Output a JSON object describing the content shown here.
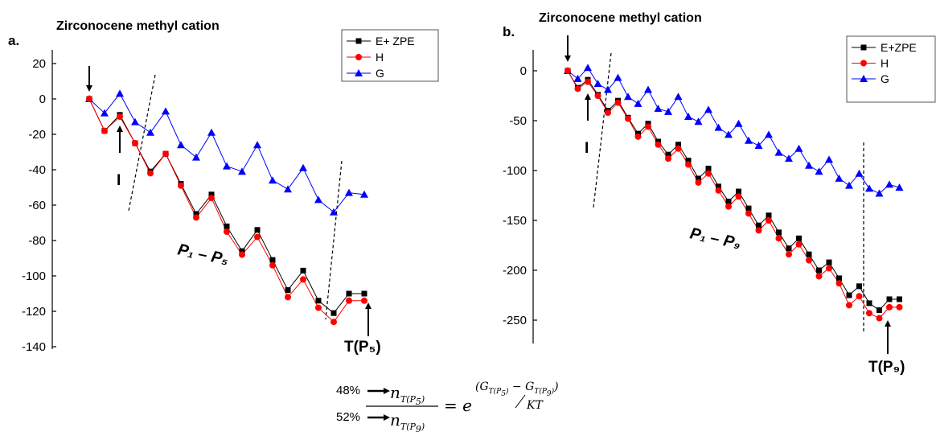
{
  "chart_data": [
    {
      "panel_label": "a.",
      "type": "line",
      "start_label": "Zirconocene methyl cation",
      "region_label": "P₁ – P₅",
      "end_label": "T(P₅)",
      "intermediate_label": "I",
      "ylim": [
        -140,
        20
      ],
      "y_ticks": [
        "20",
        "0",
        "-20",
        "-40",
        "-60",
        "-80",
        "-100",
        "-120",
        "-140"
      ],
      "series": [
        {
          "name": "E+ ZPE",
          "color": "#000000",
          "marker": "square",
          "values": [
            0,
            -18,
            -9,
            -25,
            -41,
            -31,
            -48,
            -65,
            -54,
            -72,
            -86,
            -74,
            -91,
            -108,
            -97,
            -114,
            -121,
            -110,
            -110
          ]
        },
        {
          "name": "H",
          "color": "#ff0000",
          "marker": "circle",
          "values": [
            0,
            -18,
            -10,
            -25,
            -42,
            -31,
            -49,
            -67,
            -56,
            -75,
            -88,
            -78,
            -94,
            -112,
            -102,
            -118,
            -126,
            -114,
            -114
          ]
        },
        {
          "name": "G",
          "color": "#0000ff",
          "marker": "triangle",
          "values": [
            0,
            -8,
            3,
            -13,
            -19,
            -7,
            -26,
            -33,
            -19,
            -38,
            -41,
            -26,
            -46,
            -51,
            -39,
            -57,
            -64,
            -53,
            -54
          ]
        }
      ]
    },
    {
      "panel_label": "b.",
      "type": "line",
      "start_label": "Zirconocene methyl cation",
      "region_label": "P₁ – P₉",
      "end_label": "T(P₉)",
      "intermediate_label": "I",
      "ylim": [
        -250,
        0
      ],
      "y_ticks": [
        "0",
        "-50",
        "-100",
        "-150",
        "-200",
        "-250"
      ],
      "series": [
        {
          "name": "E+ZPE",
          "color": "#000000",
          "marker": "square",
          "values": [
            0,
            -17,
            -9,
            -24,
            -40,
            -30,
            -47,
            -63,
            -53,
            -71,
            -84,
            -74,
            -90,
            -108,
            -98,
            -116,
            -131,
            -121,
            -138,
            -155,
            -145,
            -162,
            -178,
            -168,
            -184,
            -200,
            -192,
            -208,
            -225,
            -216,
            -233,
            -240,
            -229,
            -229
          ]
        },
        {
          "name": "H",
          "color": "#ff0000",
          "marker": "circle",
          "values": [
            0,
            -18,
            -11,
            -25,
            -42,
            -32,
            -48,
            -66,
            -56,
            -74,
            -88,
            -78,
            -94,
            -112,
            -103,
            -120,
            -136,
            -126,
            -143,
            -160,
            -150,
            -168,
            -184,
            -174,
            -190,
            -206,
            -198,
            -213,
            -235,
            -226,
            -243,
            -248,
            -237,
            -237
          ]
        },
        {
          "name": "G",
          "color": "#0000ff",
          "marker": "triangle",
          "values": [
            0,
            -8,
            3,
            -13,
            -19,
            -7,
            -26,
            -33,
            -19,
            -38,
            -41,
            -26,
            -46,
            -51,
            -39,
            -57,
            -64,
            -53,
            -70,
            -75,
            -64,
            -82,
            -88,
            -78,
            -95,
            -101,
            -89,
            -108,
            -115,
            -103,
            -118,
            -123,
            -114,
            -117
          ]
        }
      ]
    }
  ],
  "formula": {
    "pct_top": "48%",
    "pct_bottom": "52%"
  }
}
